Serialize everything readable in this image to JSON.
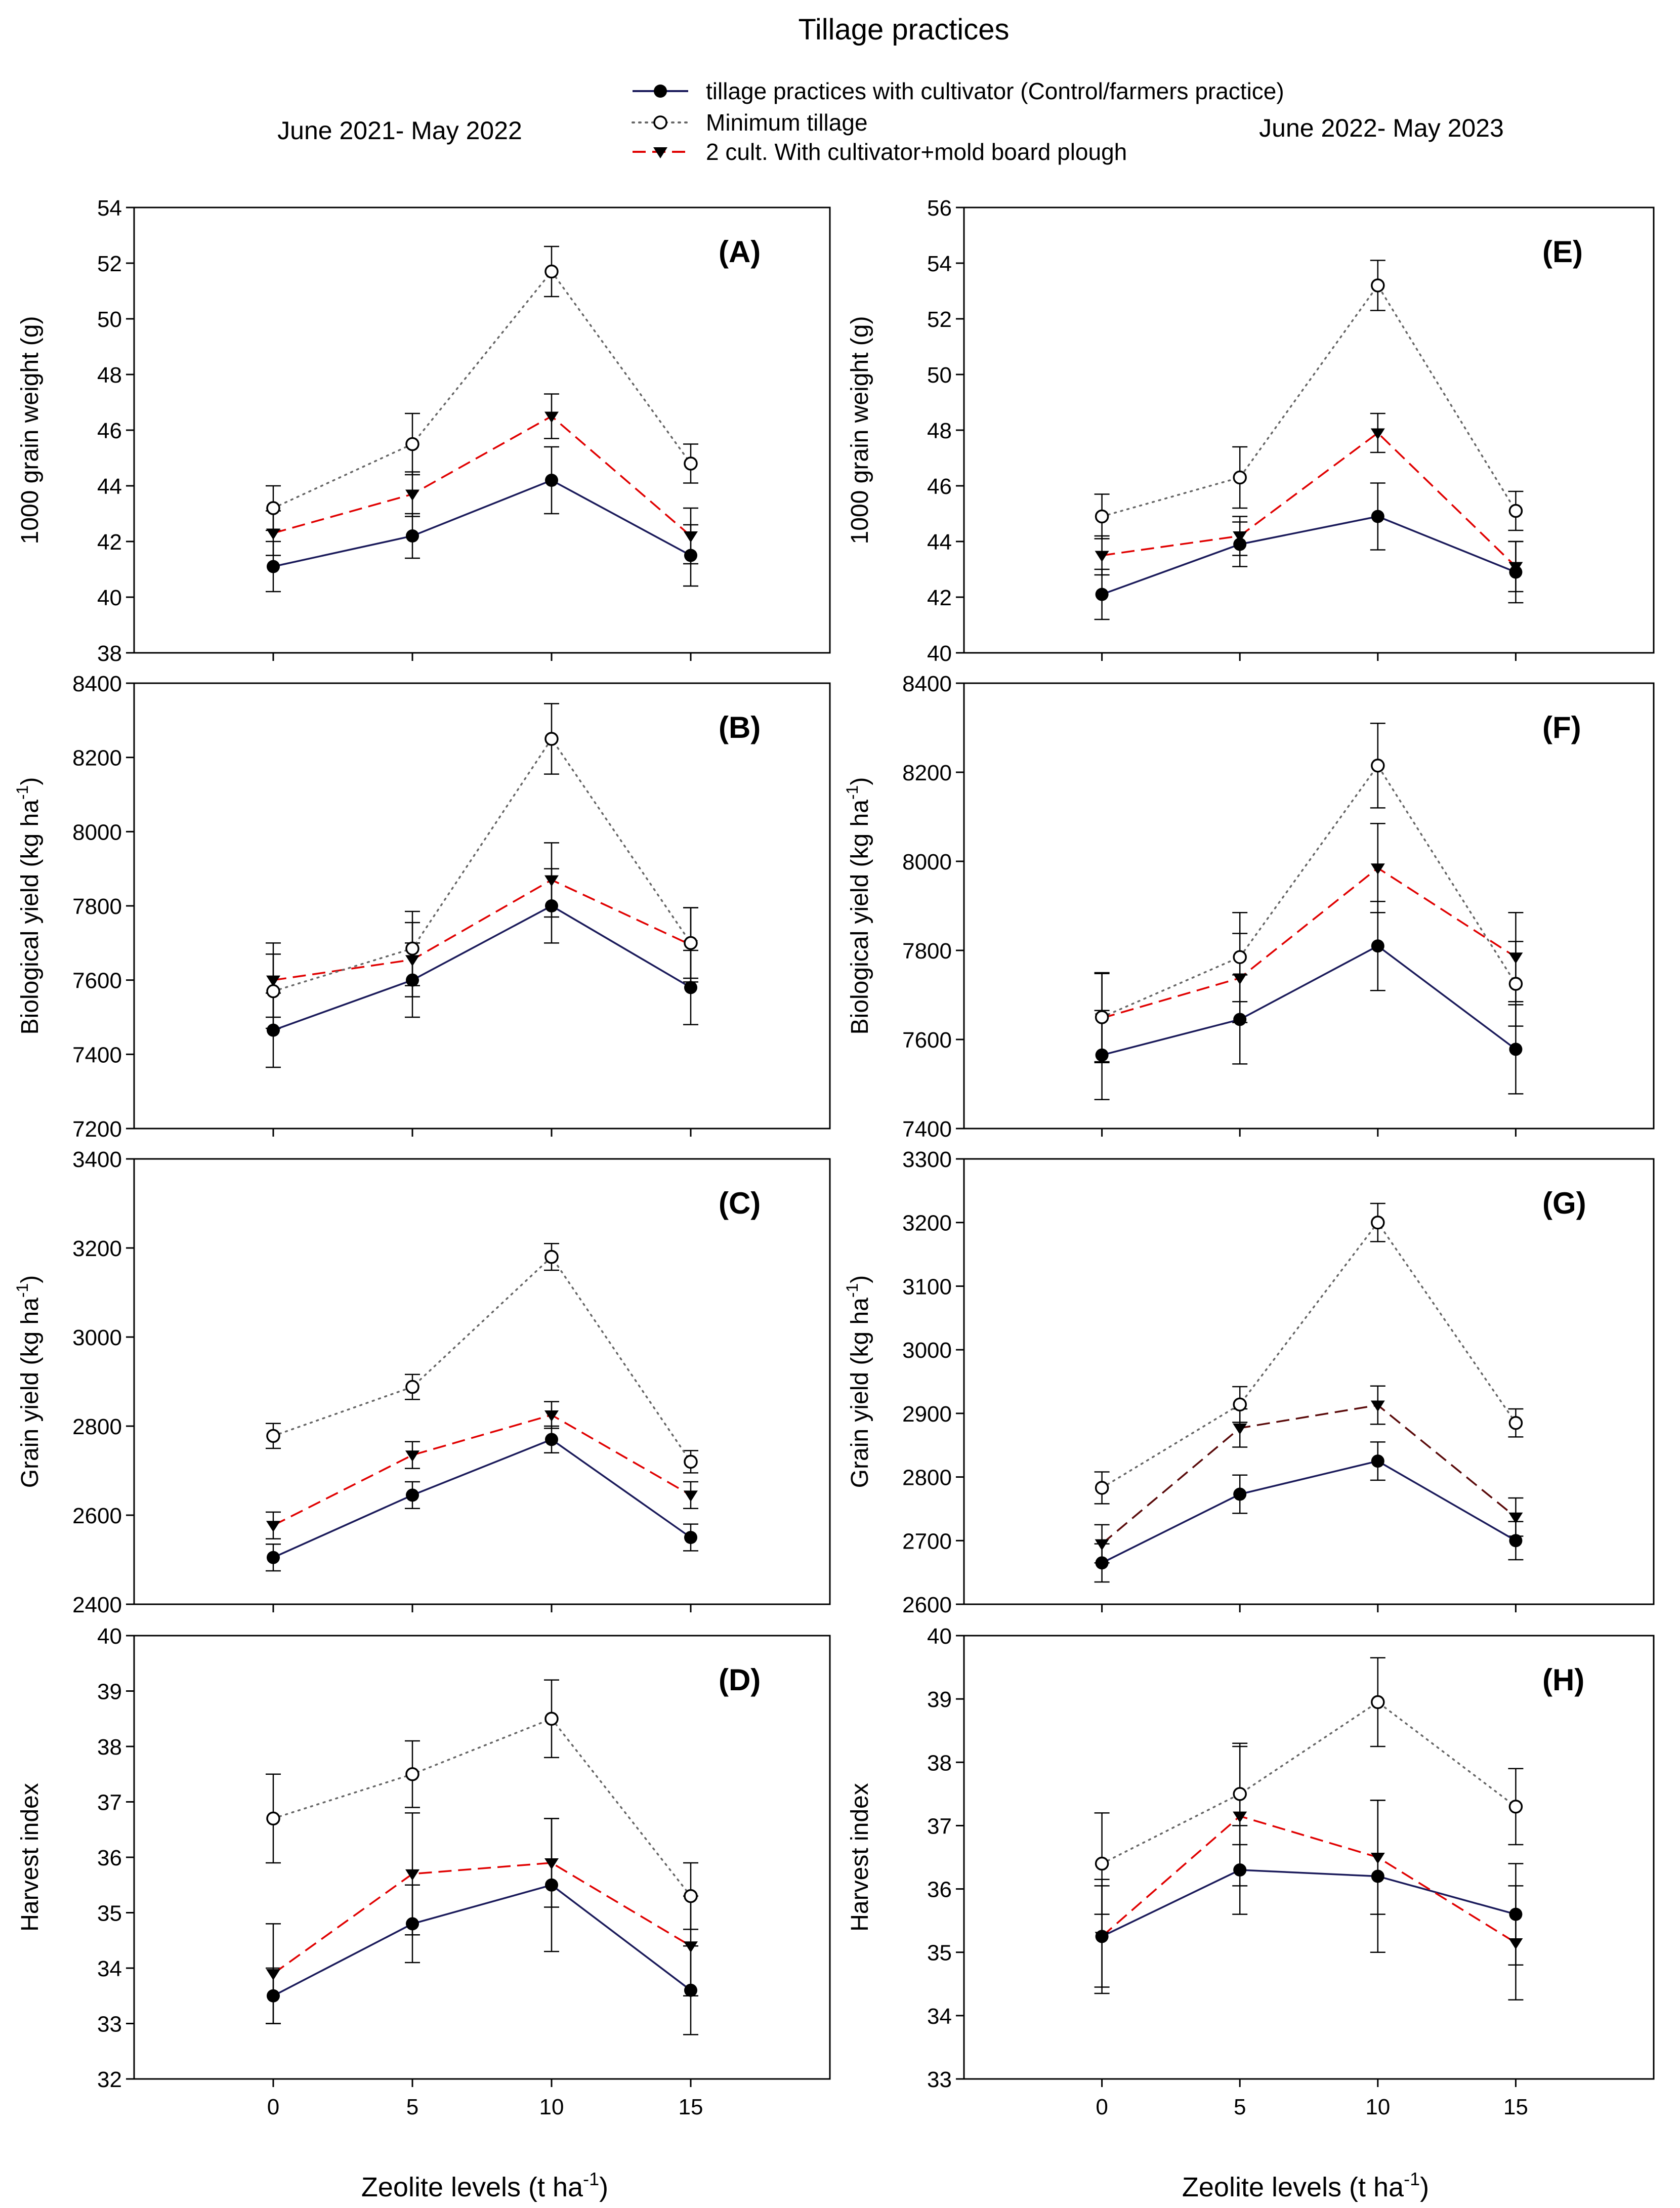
{
  "title": "Tillage practices",
  "season_left": "June 2021- May 2022",
  "season_right": "June 2022- May 2023",
  "x_label": "Zeolite levels (t ha",
  "x_label_sup": "-1",
  "x_label_close": ")",
  "legend": [
    {
      "label": "tillage practices with  cultivator (Control/farmers practice)"
    },
    {
      "label": "Minimum tillage"
    },
    {
      "label": "2 cult. With cultivator+mold board plough"
    }
  ],
  "series_styles": [
    {
      "name": "tillage practices with  cultivator (Control/farmers practice)",
      "color": "#1a1a5a",
      "dash": "",
      "marker": "circle-filled"
    },
    {
      "name": "Minimum tillage",
      "color": "#666666",
      "dash": "3,10",
      "marker": "circle-open"
    },
    {
      "name": "2 cult. With cultivator+mold board plough",
      "color": "#e00000",
      "dash": "26,13",
      "marker": "triangle-down"
    }
  ],
  "chart_data": [
    {
      "type": "line",
      "panel": "(A)",
      "ylabel": "1000 grain weight (g)",
      "xlabel": "Zeolite levels (t ha-1)",
      "x": [
        0,
        5,
        10,
        15
      ],
      "xlim": [
        -5,
        20
      ],
      "ylim": [
        38,
        54
      ],
      "yticks": [
        38,
        40,
        42,
        44,
        46,
        48,
        50,
        52,
        54
      ],
      "series": [
        {
          "name": "tillage practices with  cultivator (Control/farmers practice)",
          "values": [
            41.1,
            42.2,
            44.2,
            41.5
          ],
          "errors": [
            0.9,
            0.8,
            1.2,
            1.1
          ]
        },
        {
          "name": "Minimum tillage",
          "values": [
            43.2,
            45.5,
            51.7,
            44.8
          ],
          "errors": [
            0.8,
            1.1,
            0.9,
            0.7
          ]
        },
        {
          "name": "2 cult. With cultivator+mold board plough",
          "values": [
            42.3,
            43.7,
            46.5,
            42.2
          ],
          "errors": [
            0.8,
            0.8,
            0.8,
            1.0
          ]
        }
      ]
    },
    {
      "type": "line",
      "panel": "(B)",
      "ylabel": "Biological yield (kg ha-1)",
      "xlabel": "Zeolite levels (t ha-1)",
      "x": [
        0,
        5,
        10,
        15
      ],
      "xlim": [
        -5,
        20
      ],
      "ylim": [
        7200,
        8400
      ],
      "yticks": [
        7200,
        7400,
        7600,
        7800,
        8000,
        8200,
        8400
      ],
      "series": [
        {
          "name": "tillage practices with  cultivator (Control/farmers practice)",
          "values": [
            7465,
            7600,
            7800,
            7580
          ],
          "errors": [
            100,
            100,
            100,
            100
          ]
        },
        {
          "name": "Minimum tillage",
          "values": [
            7570,
            7685,
            8250,
            7700
          ],
          "errors": [
            100,
            100,
            95,
            95
          ]
        },
        {
          "name": "2 cult. With cultivator+mold board plough",
          "values": [
            7600,
            7655,
            7870,
            7695
          ],
          "errors": [
            100,
            100,
            100,
            100
          ]
        }
      ]
    },
    {
      "type": "line",
      "panel": "(C)",
      "ylabel": "Grain yield (kg ha-1)",
      "xlabel": "Zeolite levels (t ha-1)",
      "x": [
        0,
        5,
        10,
        15
      ],
      "xlim": [
        -5,
        20
      ],
      "ylim": [
        2400,
        3400
      ],
      "yticks": [
        2400,
        2600,
        2800,
        3000,
        3200,
        3400
      ],
      "series": [
        {
          "name": "tillage practices with  cultivator (Control/farmers practice)",
          "values": [
            2505,
            2645,
            2770,
            2550
          ],
          "errors": [
            30,
            30,
            30,
            30
          ]
        },
        {
          "name": "Minimum tillage",
          "values": [
            2778,
            2888,
            3180,
            2720
          ],
          "errors": [
            28,
            28,
            30,
            25
          ]
        },
        {
          "name": "2 cult. With cultivator+mold board plough",
          "values": [
            2577,
            2735,
            2825,
            2645
          ],
          "errors": [
            30,
            30,
            30,
            30
          ]
        }
      ]
    },
    {
      "type": "line",
      "panel": "(D)",
      "ylabel": "Harvest index",
      "xlabel": "Zeolite levels (t ha-1)",
      "x": [
        0,
        5,
        10,
        15
      ],
      "xlim": [
        -5,
        20
      ],
      "ylim": [
        32,
        40
      ],
      "yticks": [
        32,
        33,
        34,
        35,
        36,
        37,
        38,
        39,
        40
      ],
      "series": [
        {
          "name": "tillage practices with  cultivator (Control/farmers practice)",
          "values": [
            33.5,
            34.8,
            35.5,
            33.6
          ],
          "errors": [
            0.5,
            0.7,
            1.2,
            0.8
          ]
        },
        {
          "name": "Minimum tillage",
          "values": [
            36.7,
            37.5,
            38.5,
            35.3
          ],
          "errors": [
            0.8,
            0.6,
            0.7,
            0.6
          ]
        },
        {
          "name": "2 cult. With cultivator+mold board plough",
          "values": [
            33.9,
            35.7,
            35.9,
            34.4
          ],
          "errors": [
            0.9,
            1.1,
            0.8,
            0.9
          ]
        }
      ]
    },
    {
      "type": "line",
      "panel": "(E)",
      "ylabel": "1000 grain weight (g)",
      "xlabel": "Zeolite levels (t ha-1)",
      "x": [
        0,
        5,
        10,
        15
      ],
      "xlim": [
        -5,
        20
      ],
      "ylim": [
        40,
        56
      ],
      "yticks": [
        40,
        42,
        44,
        46,
        48,
        50,
        52,
        54,
        56
      ],
      "series": [
        {
          "name": "tillage practices with  cultivator (Control/farmers practice)",
          "values": [
            42.1,
            43.9,
            44.9,
            42.9
          ],
          "errors": [
            0.9,
            0.8,
            1.2,
            1.1
          ]
        },
        {
          "name": "Minimum tillage",
          "values": [
            44.9,
            46.3,
            53.2,
            45.1
          ],
          "errors": [
            0.8,
            1.1,
            0.9,
            0.7
          ]
        },
        {
          "name": "2 cult. With cultivator+mold board plough",
          "values": [
            43.5,
            44.2,
            47.9,
            43.1
          ],
          "errors": [
            0.7,
            0.7,
            0.7,
            0.9
          ]
        }
      ]
    },
    {
      "type": "line",
      "panel": "(F)",
      "ylabel": "Biological yield (kg ha-1)",
      "xlabel": "Zeolite levels (t ha-1)",
      "x": [
        0,
        5,
        10,
        15
      ],
      "xlim": [
        -5,
        20
      ],
      "ylim": [
        7400,
        8400
      ],
      "yticks": [
        7400,
        7600,
        7800,
        8000,
        8200,
        8400
      ],
      "series": [
        {
          "name": "tillage practices with  cultivator (Control/farmers practice)",
          "values": [
            7565,
            7645,
            7810,
            7578
          ],
          "errors": [
            100,
            100,
            100,
            100
          ]
        },
        {
          "name": "Minimum tillage",
          "values": [
            7650,
            7785,
            8215,
            7725
          ],
          "errors": [
            100,
            100,
            95,
            95
          ]
        },
        {
          "name": "2 cult. With cultivator+mold board plough",
          "values": [
            7648,
            7738,
            7985,
            7785
          ],
          "errors": [
            100,
            100,
            100,
            100
          ]
        }
      ]
    },
    {
      "type": "line",
      "panel": "(G)",
      "ylabel": "Grain yield (kg ha-1)",
      "xlabel": "Zeolite levels (t ha-1)",
      "x": [
        0,
        5,
        10,
        15
      ],
      "xlim": [
        -5,
        20
      ],
      "ylim": [
        2600,
        3300
      ],
      "yticks": [
        2600,
        2700,
        2800,
        2900,
        3000,
        3100,
        3200,
        3300
      ],
      "series": [
        {
          "name": "tillage practices with  cultivator (Control/farmers practice)",
          "values": [
            2665,
            2773,
            2825,
            2700
          ],
          "errors": [
            30,
            30,
            30,
            30
          ]
        },
        {
          "name": "Minimum tillage",
          "values": [
            2783,
            2914,
            3200,
            2885
          ],
          "errors": [
            25,
            28,
            30,
            22
          ]
        },
        {
          "name": "2 cult. With cultivator+mold board plough",
          "values": [
            2695,
            2877,
            2913,
            2737
          ],
          "errors": [
            30,
            30,
            30,
            30
          ]
        }
      ]
    },
    {
      "type": "line",
      "panel": "(H)",
      "ylabel": "Harvest index",
      "xlabel": "Zeolite levels (t ha-1)",
      "x": [
        0,
        5,
        10,
        15
      ],
      "xlim": [
        -5,
        20
      ],
      "ylim": [
        33,
        40
      ],
      "yticks": [
        33,
        34,
        35,
        36,
        37,
        38,
        39,
        40
      ],
      "series": [
        {
          "name": "tillage practices with  cultivator (Control/farmers practice)",
          "values": [
            35.25,
            36.3,
            36.2,
            35.6
          ],
          "errors": [
            0.9,
            0.7,
            1.2,
            0.8
          ]
        },
        {
          "name": "Minimum tillage",
          "values": [
            36.4,
            37.5,
            38.95,
            37.3
          ],
          "errors": [
            0.8,
            0.8,
            0.7,
            0.6
          ]
        },
        {
          "name": "2 cult. With cultivator+mold board plough",
          "values": [
            35.25,
            37.15,
            36.5,
            35.15
          ],
          "errors": [
            0.8,
            1.1,
            0.9,
            0.9
          ]
        }
      ]
    }
  ]
}
